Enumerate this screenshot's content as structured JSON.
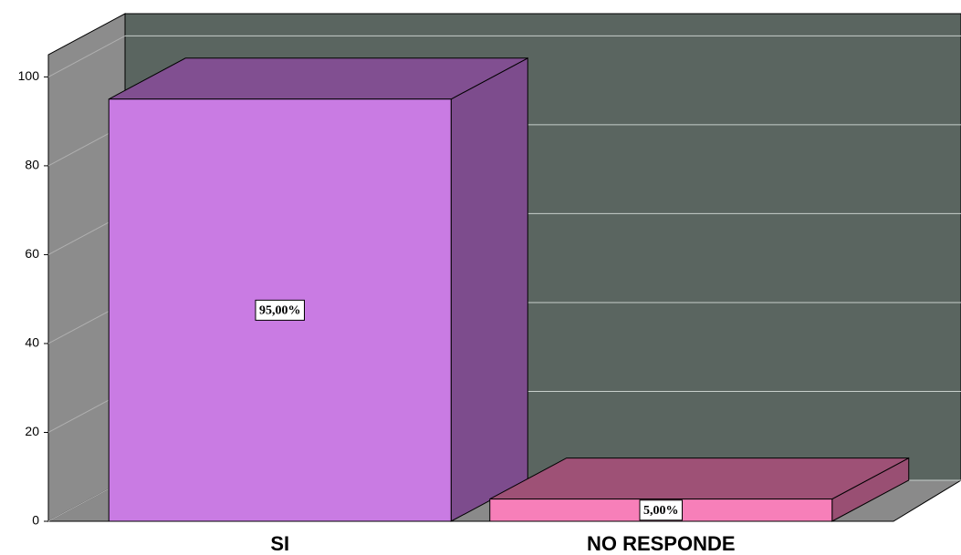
{
  "chart_data": {
    "type": "bar3d",
    "categories": [
      "SI",
      "NO RESPONDE"
    ],
    "values": [
      95,
      5
    ],
    "value_labels": [
      "95,00%",
      "5,00%"
    ],
    "colors": [
      "#c97be3",
      "#f77fb9"
    ],
    "ylim": [
      0,
      105
    ],
    "yticks": [
      0,
      20,
      40,
      60,
      80,
      100
    ],
    "grid": true
  }
}
